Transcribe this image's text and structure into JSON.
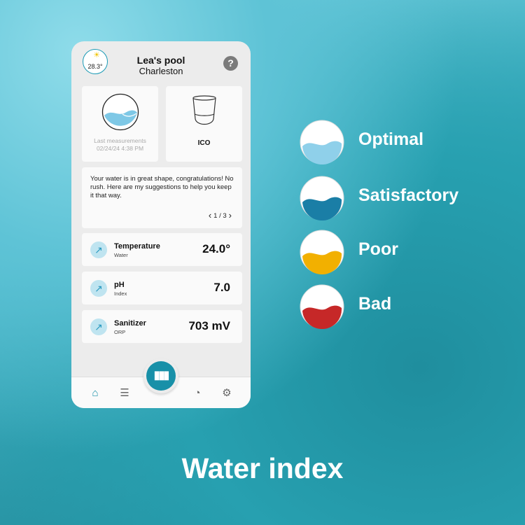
{
  "app": {
    "pool_name": "Lea's pool",
    "city": "Charleston",
    "temperature_air": "28.3°",
    "help": "?"
  },
  "cards": {
    "last_measurements": "Last measurements",
    "timestamp": "02/24/24 4:38 PM",
    "device": "ICO"
  },
  "message": {
    "text": "Your water is in great shape, congratulations! No rush. Here are my suggestions to help you keep it that way.",
    "page": "1 / 3"
  },
  "metrics": [
    {
      "name": "Temperature",
      "sub": "Water",
      "value": "24.0°"
    },
    {
      "name": "pH",
      "sub": "Index",
      "value": "7.0"
    },
    {
      "name": "Sanitizer",
      "sub": "ORP",
      "value": "703 mV"
    }
  ],
  "nav": [
    "home-icon",
    "chat-icon",
    "device-icon",
    "gauge-icon",
    "settings-icon"
  ],
  "legend": [
    {
      "label": "Optimal",
      "color": "#8fd0ea"
    },
    {
      "label": "Satisfactory",
      "color": "#1a7ea6"
    },
    {
      "label": "Poor",
      "color": "#f2b000"
    },
    {
      "label": "Bad",
      "color": "#c62828"
    }
  ],
  "caption": "Water index"
}
